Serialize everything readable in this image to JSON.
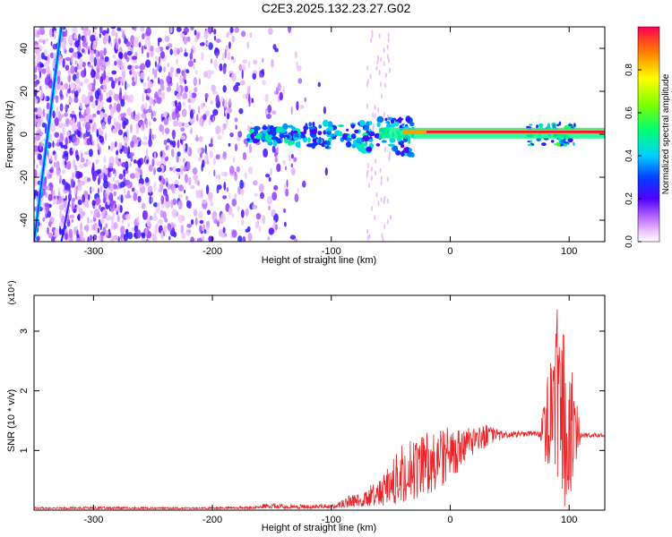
{
  "figure": {
    "title": "C2E3.2025.132.23.27.G02"
  },
  "colors": {
    "snr_line": "#e8262a",
    "frame": "#000000",
    "colorbar": [
      "#ffffff",
      "#ff00ff",
      "#7f00ff",
      "#0000ff",
      "#00c8ff",
      "#00ff80",
      "#80ff00",
      "#ffff00",
      "#ff8000",
      "#ff0000"
    ]
  },
  "chart_data": [
    {
      "type": "heatmap",
      "title": "C2E3.2025.132.23.27.G02",
      "xlabel": "Height of straight line (km)",
      "ylabel": "Frequency (Hz)",
      "xlim": [
        -350,
        130
      ],
      "ylim": [
        -50,
        50
      ],
      "xticks": [
        -300,
        -200,
        -100,
        0,
        100
      ],
      "yticks": [
        -40,
        -20,
        0,
        20,
        40
      ],
      "colorbar": {
        "label": "Normalized spectral amplitude",
        "range": [
          0,
          1
        ],
        "ticks": [
          "0.0",
          "0.2",
          "0.4",
          "0.6",
          "0.8"
        ]
      },
      "features": [
        {
          "name": "strong line",
          "x": [
            -60,
            130
          ],
          "y": [
            0,
            1.5
          ],
          "amplitude": 1.0
        },
        {
          "name": "broadened signal",
          "x": [
            -170,
            -30
          ],
          "y": [
            -10,
            8
          ],
          "amplitude": 0.55
        },
        {
          "name": "diagonal streak",
          "x": [
            -350,
            -325
          ],
          "y": [
            -50,
            50
          ],
          "amplitude": 0.4
        },
        {
          "name": "diagonal streak",
          "x": [
            -330,
            -320
          ],
          "y": [
            -50,
            -30
          ],
          "amplitude": 0.2
        },
        {
          "name": "noise",
          "x": [
            -350,
            -100
          ],
          "y": [
            -50,
            50
          ],
          "amplitude": 0.15
        }
      ],
      "grid": false
    },
    {
      "type": "line",
      "xlabel": "Height of straight line (km)",
      "ylabel": "SNR (10 * v/v)",
      "y_multiplier": "(x10⁴)",
      "xlim": [
        -350,
        130
      ],
      "ylim": [
        0,
        3.6
      ],
      "xticks": [
        -300,
        -200,
        -100,
        0,
        100
      ],
      "yticks": [
        1,
        2,
        3
      ],
      "grid": false,
      "series": [
        {
          "x": [
            -350,
            -300,
            -250,
            -200,
            -170,
            -150,
            -120,
            -100,
            -80,
            -60,
            -50,
            -40,
            -30,
            -20,
            -10,
            0,
            10,
            20,
            30,
            40,
            50,
            60,
            70,
            75,
            80,
            85,
            90,
            95,
            100,
            105,
            110,
            120,
            130
          ],
          "y": [
            0.03,
            0.03,
            0.03,
            0.03,
            0.04,
            0.05,
            0.04,
            0.05,
            0.12,
            0.2,
            0.35,
            0.5,
            0.65,
            0.8,
            0.95,
            1.05,
            1.15,
            1.25,
            1.28,
            1.27,
            1.28,
            1.28,
            1.28,
            1.27,
            1.5,
            2.0,
            2.6,
            2.2,
            1.8,
            1.4,
            1.26,
            1.26,
            1.25
          ],
          "min_envelope": [
            0.02,
            0.02,
            0.02,
            0.02,
            0.02,
            0.03,
            0.02,
            0.03,
            0.05,
            0.08,
            0.05,
            0.1,
            0.1,
            0.2,
            0.35,
            0.5,
            0.7,
            0.9,
            1.05,
            1.15,
            1.22,
            1.22,
            1.24,
            1.2,
            0.8,
            0.4,
            0.1,
            0.0,
            0.2,
            0.6,
            1.2,
            1.22,
            1.22
          ],
          "max_envelope": [
            0.05,
            0.06,
            0.05,
            0.05,
            0.07,
            0.12,
            0.09,
            0.1,
            0.3,
            0.5,
            0.8,
            1.1,
            1.25,
            1.3,
            1.35,
            1.4,
            1.35,
            1.4,
            1.45,
            1.35,
            1.33,
            1.32,
            1.33,
            1.35,
            2.0,
            2.8,
            3.45,
            3.0,
            2.8,
            2.0,
            1.3,
            1.3,
            1.28
          ]
        }
      ]
    }
  ]
}
